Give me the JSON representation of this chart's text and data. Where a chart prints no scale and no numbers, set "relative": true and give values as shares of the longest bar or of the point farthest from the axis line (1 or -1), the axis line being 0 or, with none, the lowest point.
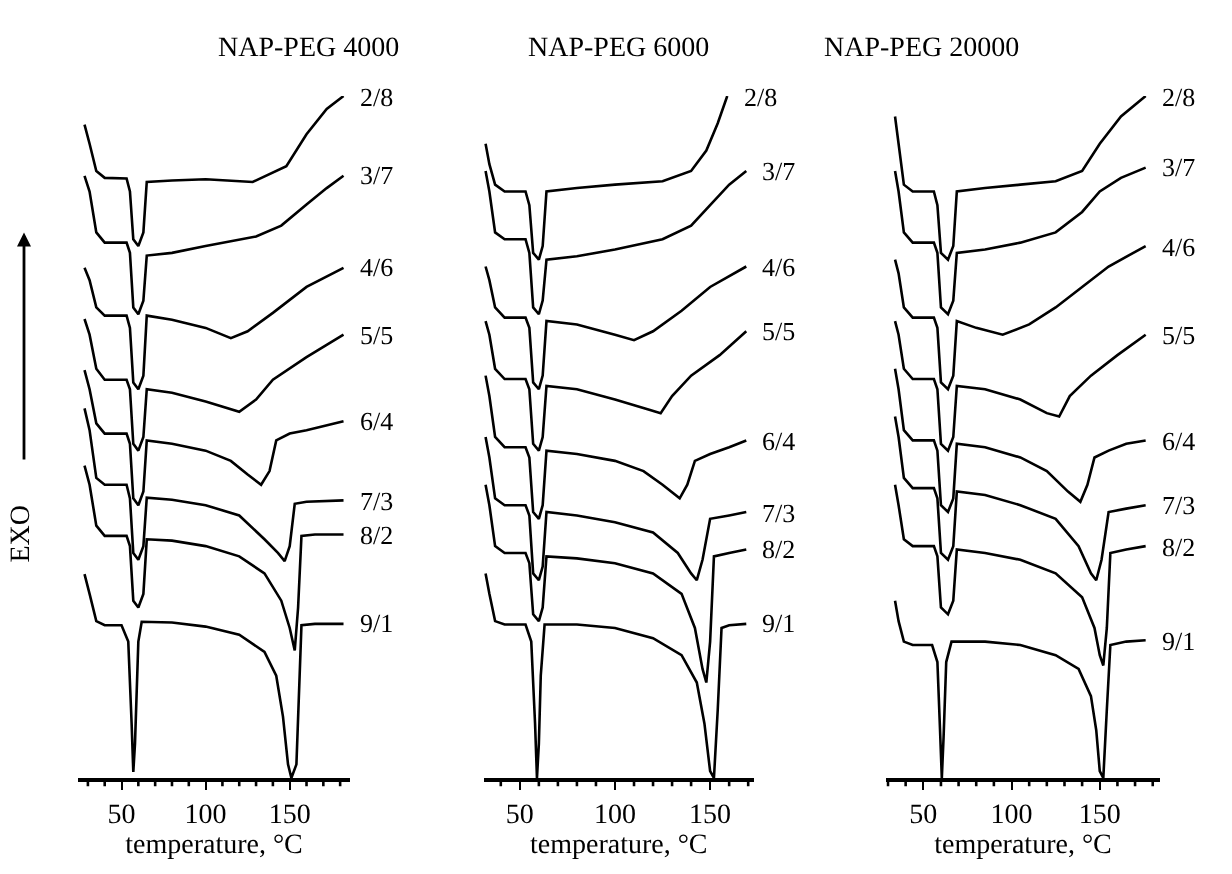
{
  "chart_data": [
    {
      "type": "line",
      "title": "NAP-PEG 4000",
      "xlabel": "temperature, °C",
      "ylabel": "EXO",
      "relative": true,
      "xlim": [
        24,
        186
      ],
      "xticks": [
        {
          "value": 30,
          "label": null
        },
        {
          "value": 40,
          "label": null
        },
        50,
        {
          "value": 60,
          "label": null
        },
        {
          "value": 70,
          "label": null
        },
        {
          "value": 80,
          "label": null
        },
        {
          "value": 90,
          "label": null
        },
        100,
        {
          "value": 110,
          "label": null
        },
        {
          "value": 120,
          "label": null
        },
        {
          "value": 130,
          "label": null
        },
        {
          "value": 140,
          "label": null
        },
        150,
        {
          "value": 160,
          "label": null
        },
        {
          "value": 170,
          "label": null
        },
        {
          "value": 180,
          "label": null
        }
      ],
      "tick_labels": "x",
      "legend": false,
      "marker": "none",
      "line_style": "solid",
      "series": [
        {
          "name": "2/8",
          "color": "#000000",
          "x": [
            28,
            31,
            35,
            40,
            53,
            55,
            57,
            60,
            63,
            65,
            80,
            100,
            128,
            148,
            160,
            172,
            182
          ],
          "values": [
            0.958,
            0.93,
            0.89,
            0.88,
            0.879,
            0.86,
            0.79,
            0.78,
            0.8,
            0.874,
            0.876,
            0.878,
            0.874,
            0.897,
            0.944,
            0.981,
            1.0
          ]
        },
        {
          "name": "3/7",
          "color": "#000000",
          "x": [
            28,
            31,
            35,
            40,
            53,
            55,
            57,
            60,
            63,
            65,
            80,
            100,
            130,
            145,
            160,
            172,
            182
          ],
          "values": [
            0.883,
            0.86,
            0.8,
            0.785,
            0.785,
            0.77,
            0.69,
            0.68,
            0.7,
            0.766,
            0.77,
            0.78,
            0.794,
            0.81,
            0.841,
            0.865,
            0.883
          ]
        },
        {
          "name": "4/6",
          "color": "#000000",
          "x": [
            28,
            31,
            35,
            40,
            53,
            55,
            57,
            60,
            63,
            65,
            80,
            100,
            115,
            125,
            140,
            160,
            182
          ],
          "values": [
            0.748,
            0.73,
            0.69,
            0.678,
            0.678,
            0.66,
            0.58,
            0.57,
            0.59,
            0.678,
            0.672,
            0.66,
            0.645,
            0.655,
            0.682,
            0.72,
            0.748
          ]
        },
        {
          "name": "5/5",
          "color": "#000000",
          "x": [
            28,
            31,
            35,
            40,
            53,
            55,
            57,
            60,
            63,
            65,
            80,
            100,
            120,
            130,
            140,
            160,
            182
          ],
          "values": [
            0.673,
            0.65,
            0.6,
            0.584,
            0.584,
            0.57,
            0.49,
            0.48,
            0.5,
            0.57,
            0.565,
            0.552,
            0.537,
            0.555,
            0.584,
            0.617,
            0.65
          ]
        },
        {
          "name": "6/4",
          "color": "#000000",
          "x": [
            28,
            31,
            35,
            40,
            53,
            55,
            57,
            60,
            63,
            65,
            80,
            100,
            115,
            125,
            133,
            138,
            142,
            150,
            160,
            182
          ],
          "values": [
            0.598,
            0.57,
            0.52,
            0.505,
            0.505,
            0.49,
            0.41,
            0.4,
            0.42,
            0.495,
            0.49,
            0.48,
            0.465,
            0.445,
            0.43,
            0.45,
            0.495,
            0.505,
            0.51,
            0.523
          ]
        },
        {
          "name": "7/3",
          "color": "#000000",
          "x": [
            28,
            31,
            35,
            40,
            53,
            55,
            57,
            60,
            63,
            65,
            80,
            100,
            120,
            135,
            143,
            147,
            150,
            153,
            160,
            182
          ],
          "values": [
            0.542,
            0.51,
            0.44,
            0.43,
            0.43,
            0.41,
            0.33,
            0.32,
            0.34,
            0.411,
            0.408,
            0.4,
            0.385,
            0.35,
            0.33,
            0.318,
            0.34,
            0.402,
            0.405,
            0.407
          ]
        },
        {
          "name": "8/2",
          "color": "#000000",
          "x": [
            28,
            31,
            35,
            40,
            53,
            55,
            57,
            60,
            63,
            65,
            80,
            100,
            120,
            135,
            145,
            150,
            153,
            155,
            157,
            165,
            182
          ],
          "values": [
            0.458,
            0.43,
            0.37,
            0.355,
            0.355,
            0.34,
            0.26,
            0.25,
            0.27,
            0.35,
            0.348,
            0.34,
            0.325,
            0.3,
            0.26,
            0.22,
            0.187,
            0.25,
            0.355,
            0.357,
            0.357
          ]
        },
        {
          "name": "9/1",
          "color": "#000000",
          "x": [
            28,
            31,
            35,
            40,
            50,
            54,
            56,
            57,
            58,
            60,
            62,
            80,
            100,
            120,
            135,
            142,
            146,
            149,
            151,
            154,
            157,
            165,
            182
          ],
          "values": [
            0.299,
            0.27,
            0.23,
            0.224,
            0.224,
            0.2,
            0.08,
            0.009,
            0.05,
            0.2,
            0.229,
            0.228,
            0.222,
            0.21,
            0.185,
            0.15,
            0.09,
            0.02,
            0,
            0.02,
            0.224,
            0.226,
            0.226
          ]
        }
      ]
    },
    {
      "type": "line",
      "title": "NAP-PEG 6000",
      "xlabel": "temperature, °C",
      "relative": true,
      "xlim": [
        31,
        173
      ],
      "xticks": [
        {
          "value": 40,
          "label": null
        },
        50,
        {
          "value": 60,
          "label": null
        },
        {
          "value": 70,
          "label": null
        },
        {
          "value": 80,
          "label": null
        },
        {
          "value": 90,
          "label": null
        },
        100,
        {
          "value": 110,
          "label": null
        },
        {
          "value": 120,
          "label": null
        },
        {
          "value": 130,
          "label": null
        },
        {
          "value": 140,
          "label": null
        },
        150,
        {
          "value": 160,
          "label": null
        },
        {
          "value": 170,
          "label": null
        }
      ],
      "tick_labels": "x",
      "legend": false,
      "marker": "none",
      "line_style": "solid",
      "series": [
        {
          "name": "2/8",
          "color": "#000000",
          "x": [
            32,
            34,
            37,
            42,
            53,
            55,
            57,
            60,
            62,
            64,
            80,
            100,
            125,
            140,
            148,
            154,
            159
          ],
          "values": [
            0.93,
            0.9,
            0.87,
            0.86,
            0.86,
            0.84,
            0.77,
            0.76,
            0.78,
            0.86,
            0.865,
            0.87,
            0.875,
            0.89,
            0.92,
            0.96,
            1.0
          ]
        },
        {
          "name": "3/7",
          "color": "#000000",
          "x": [
            32,
            34,
            37,
            42,
            53,
            55,
            57,
            60,
            62,
            64,
            80,
            100,
            125,
            140,
            150,
            160,
            169
          ],
          "values": [
            0.89,
            0.86,
            0.8,
            0.79,
            0.79,
            0.77,
            0.69,
            0.68,
            0.7,
            0.76,
            0.765,
            0.775,
            0.79,
            0.81,
            0.84,
            0.87,
            0.89
          ]
        },
        {
          "name": "4/6",
          "color": "#000000",
          "x": [
            32,
            34,
            37,
            42,
            53,
            55,
            57,
            60,
            62,
            64,
            80,
            100,
            110,
            120,
            135,
            150,
            169
          ],
          "values": [
            0.75,
            0.73,
            0.69,
            0.675,
            0.675,
            0.66,
            0.58,
            0.57,
            0.59,
            0.67,
            0.665,
            0.65,
            0.642,
            0.655,
            0.685,
            0.72,
            0.75
          ]
        },
        {
          "name": "5/5",
          "color": "#000000",
          "x": [
            32,
            34,
            37,
            42,
            53,
            55,
            57,
            60,
            62,
            64,
            80,
            100,
            118,
            124,
            130,
            140,
            155,
            169
          ],
          "values": [
            0.67,
            0.65,
            0.6,
            0.585,
            0.585,
            0.57,
            0.49,
            0.48,
            0.5,
            0.575,
            0.57,
            0.555,
            0.54,
            0.535,
            0.56,
            0.59,
            0.62,
            0.655
          ]
        },
        {
          "name": "6/4",
          "color": "#000000",
          "x": [
            32,
            34,
            37,
            42,
            53,
            55,
            57,
            60,
            62,
            64,
            80,
            100,
            115,
            125,
            134,
            138,
            142,
            150,
            160,
            169
          ],
          "values": [
            0.59,
            0.56,
            0.5,
            0.485,
            0.485,
            0.47,
            0.39,
            0.38,
            0.4,
            0.48,
            0.475,
            0.465,
            0.45,
            0.43,
            0.41,
            0.43,
            0.465,
            0.475,
            0.485,
            0.495
          ]
        },
        {
          "name": "7/3",
          "color": "#000000",
          "x": [
            32,
            34,
            37,
            42,
            53,
            55,
            57,
            60,
            62,
            64,
            80,
            100,
            120,
            133,
            140,
            143,
            146,
            150,
            160,
            169
          ],
          "values": [
            0.5,
            0.47,
            0.41,
            0.4,
            0.4,
            0.385,
            0.3,
            0.29,
            0.31,
            0.39,
            0.385,
            0.375,
            0.36,
            0.33,
            0.3,
            0.29,
            0.32,
            0.38,
            0.385,
            0.39
          ]
        },
        {
          "name": "8/2",
          "color": "#000000",
          "x": [
            32,
            34,
            37,
            42,
            53,
            55,
            57,
            60,
            62,
            64,
            80,
            100,
            120,
            135,
            142,
            146,
            148,
            150,
            152,
            160,
            169
          ],
          "values": [
            0.43,
            0.4,
            0.34,
            0.33,
            0.33,
            0.315,
            0.24,
            0.23,
            0.25,
            0.325,
            0.322,
            0.315,
            0.3,
            0.27,
            0.22,
            0.16,
            0.14,
            0.2,
            0.325,
            0.33,
            0.335
          ]
        },
        {
          "name": "9/1",
          "color": "#000000",
          "x": [
            32,
            34,
            37,
            42,
            53,
            56,
            58,
            59,
            60,
            61,
            63,
            80,
            100,
            120,
            135,
            143,
            147,
            150,
            152,
            154,
            156,
            160,
            169
          ],
          "values": [
            0.3,
            0.27,
            0.23,
            0.225,
            0.225,
            0.2,
            0.08,
            0.0,
            0.05,
            0.15,
            0.225,
            0.225,
            0.22,
            0.205,
            0.18,
            0.14,
            0.08,
            0.01,
            0,
            0.1,
            0.22,
            0.224,
            0.226
          ]
        }
      ]
    },
    {
      "type": "line",
      "title": "NAP-PEG 20000",
      "xlabel": "temperature, °C",
      "relative": true,
      "xlim": [
        29,
        184
      ],
      "xticks": [
        {
          "value": 30,
          "label": null
        },
        {
          "value": 40,
          "label": null
        },
        50,
        {
          "value": 60,
          "label": null
        },
        {
          "value": 70,
          "label": null
        },
        {
          "value": 80,
          "label": null
        },
        {
          "value": 90,
          "label": null
        },
        100,
        {
          "value": 110,
          "label": null
        },
        {
          "value": 120,
          "label": null
        },
        {
          "value": 130,
          "label": null
        },
        {
          "value": 140,
          "label": null
        },
        150,
        {
          "value": 160,
          "label": null
        },
        {
          "value": 170,
          "label": null
        },
        {
          "value": 180,
          "label": null
        }
      ],
      "tick_labels": "x",
      "legend": false,
      "marker": "none",
      "line_style": "solid",
      "series": [
        {
          "name": "2/8",
          "color": "#000000",
          "x": [
            34,
            36,
            39,
            44,
            56,
            58,
            60,
            64,
            67,
            69,
            85,
            105,
            125,
            140,
            150,
            162,
            176
          ],
          "values": [
            0.97,
            0.93,
            0.87,
            0.86,
            0.86,
            0.84,
            0.77,
            0.76,
            0.78,
            0.86,
            0.865,
            0.87,
            0.875,
            0.89,
            0.93,
            0.97,
            1.0
          ]
        },
        {
          "name": "3/7",
          "color": "#000000",
          "x": [
            34,
            36,
            39,
            44,
            56,
            58,
            60,
            64,
            67,
            69,
            85,
            105,
            125,
            140,
            150,
            162,
            176
          ],
          "values": [
            0.89,
            0.86,
            0.8,
            0.785,
            0.785,
            0.77,
            0.69,
            0.68,
            0.7,
            0.77,
            0.775,
            0.785,
            0.8,
            0.83,
            0.86,
            0.88,
            0.895
          ]
        },
        {
          "name": "4/6",
          "color": "#000000",
          "x": [
            34,
            36,
            39,
            44,
            56,
            58,
            60,
            64,
            67,
            69,
            80,
            95,
            110,
            125,
            140,
            155,
            176
          ],
          "values": [
            0.76,
            0.74,
            0.69,
            0.675,
            0.675,
            0.66,
            0.58,
            0.57,
            0.59,
            0.67,
            0.66,
            0.65,
            0.665,
            0.69,
            0.72,
            0.75,
            0.78
          ]
        },
        {
          "name": "5/5",
          "color": "#000000",
          "x": [
            34,
            36,
            39,
            44,
            56,
            58,
            60,
            64,
            67,
            69,
            85,
            105,
            120,
            127,
            133,
            145,
            160,
            176
          ],
          "values": [
            0.67,
            0.65,
            0.6,
            0.585,
            0.585,
            0.57,
            0.49,
            0.48,
            0.5,
            0.575,
            0.57,
            0.555,
            0.535,
            0.53,
            0.56,
            0.59,
            0.62,
            0.65
          ]
        },
        {
          "name": "6/4",
          "color": "#000000",
          "x": [
            34,
            36,
            39,
            44,
            56,
            58,
            60,
            64,
            67,
            69,
            85,
            105,
            120,
            132,
            139,
            143,
            147,
            155,
            165,
            176
          ],
          "values": [
            0.6,
            0.57,
            0.51,
            0.495,
            0.495,
            0.48,
            0.4,
            0.39,
            0.41,
            0.49,
            0.485,
            0.47,
            0.45,
            0.42,
            0.405,
            0.43,
            0.47,
            0.48,
            0.49,
            0.495
          ]
        },
        {
          "name": "7/3",
          "color": "#000000",
          "x": [
            34,
            36,
            39,
            44,
            56,
            58,
            60,
            64,
            67,
            69,
            85,
            105,
            125,
            138,
            145,
            148,
            151,
            155,
            165,
            176
          ],
          "values": [
            0.53,
            0.5,
            0.44,
            0.425,
            0.425,
            0.41,
            0.33,
            0.32,
            0.34,
            0.42,
            0.415,
            0.4,
            0.38,
            0.34,
            0.3,
            0.29,
            0.32,
            0.39,
            0.395,
            0.4
          ]
        },
        {
          "name": "8/2",
          "color": "#000000",
          "x": [
            34,
            36,
            39,
            44,
            56,
            58,
            60,
            64,
            67,
            69,
            85,
            105,
            125,
            140,
            147,
            150,
            152,
            154,
            156,
            165,
            176
          ],
          "values": [
            0.43,
            0.4,
            0.35,
            0.34,
            0.34,
            0.325,
            0.25,
            0.24,
            0.26,
            0.335,
            0.33,
            0.32,
            0.3,
            0.265,
            0.22,
            0.18,
            0.165,
            0.22,
            0.33,
            0.335,
            0.34
          ]
        },
        {
          "name": "9/1",
          "color": "#000000",
          "x": [
            34,
            36,
            39,
            44,
            55,
            58,
            59.5,
            60.5,
            61.5,
            63,
            66,
            85,
            105,
            125,
            138,
            145,
            148,
            150,
            152,
            154,
            156,
            165,
            176
          ],
          "values": [
            0.26,
            0.23,
            0.2,
            0.195,
            0.195,
            0.17,
            0.07,
            0.0,
            0.06,
            0.17,
            0.2,
            0.2,
            0.195,
            0.18,
            0.16,
            0.12,
            0.07,
            0.01,
            0,
            0.1,
            0.195,
            0.2,
            0.202
          ]
        }
      ]
    }
  ]
}
